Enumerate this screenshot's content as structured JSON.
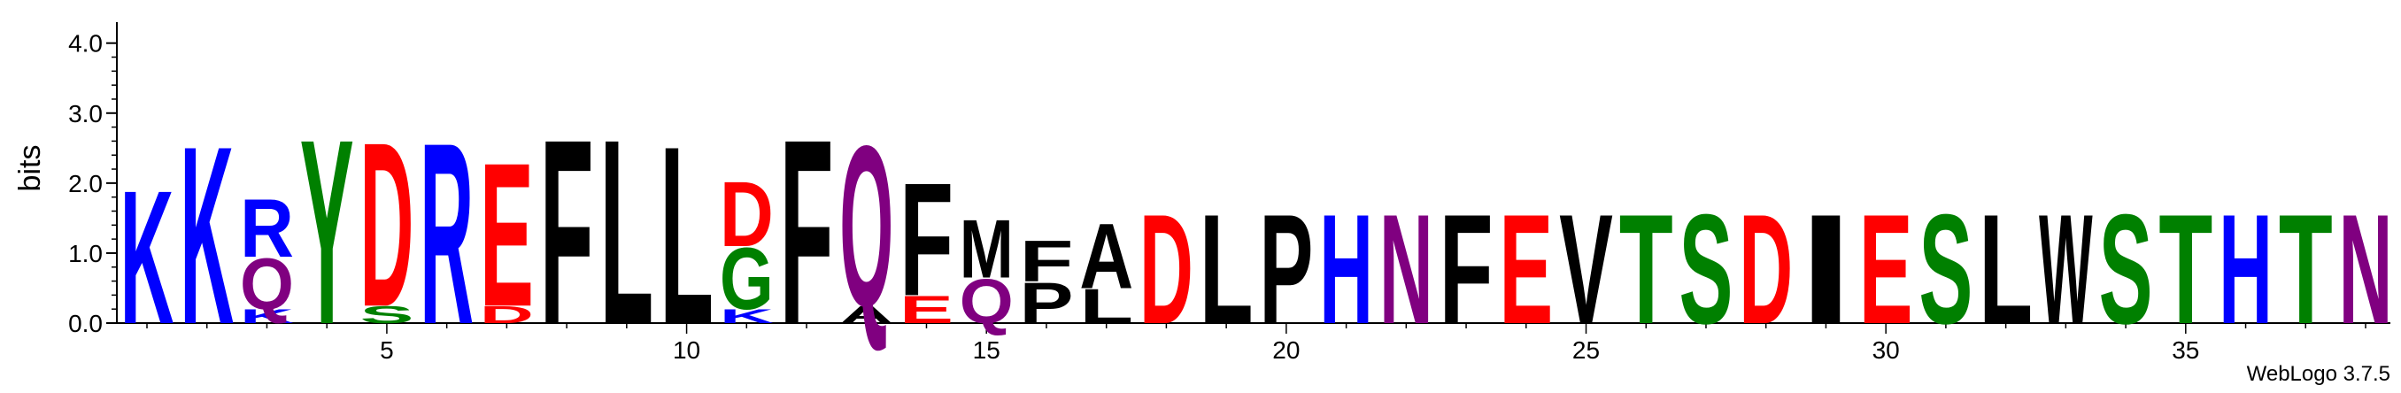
{
  "chart_data": {
    "type": "sequence-logo",
    "ylabel": "bits",
    "ylim": [
      0,
      4.3
    ],
    "y_ticks": [
      "0.0",
      "1.0",
      "2.0",
      "3.0",
      "4.0"
    ],
    "x_ticks": [
      "5",
      "10",
      "15",
      "20",
      "25",
      "30",
      "35"
    ],
    "x_tick_values": [
      5,
      10,
      15,
      20,
      25,
      30,
      35
    ],
    "positions": [
      {
        "pos": 1,
        "stack": [
          {
            "letter": "K",
            "bits": 1.95
          }
        ]
      },
      {
        "pos": 2,
        "stack": [
          {
            "letter": "K",
            "bits": 2.6
          }
        ]
      },
      {
        "pos": 3,
        "stack": [
          {
            "letter": "K",
            "bits": 0.2
          },
          {
            "letter": "Q",
            "bits": 0.75
          },
          {
            "letter": "R",
            "bits": 0.85
          }
        ]
      },
      {
        "pos": 4,
        "stack": [
          {
            "letter": "Y",
            "bits": 2.7
          }
        ]
      },
      {
        "pos": 5,
        "stack": [
          {
            "letter": "S",
            "bits": 0.25
          },
          {
            "letter": "D",
            "bits": 2.4
          }
        ]
      },
      {
        "pos": 6,
        "stack": [
          {
            "letter": "R",
            "bits": 2.65
          }
        ]
      },
      {
        "pos": 7,
        "stack": [
          {
            "letter": "D",
            "bits": 0.25
          },
          {
            "letter": "E",
            "bits": 2.1
          }
        ]
      },
      {
        "pos": 8,
        "stack": [
          {
            "letter": "F",
            "bits": 2.7
          }
        ]
      },
      {
        "pos": 9,
        "stack": [
          {
            "letter": "L",
            "bits": 2.7
          }
        ]
      },
      {
        "pos": 10,
        "stack": [
          {
            "letter": "L",
            "bits": 2.6
          }
        ]
      },
      {
        "pos": 11,
        "stack": [
          {
            "letter": "K",
            "bits": 0.2
          },
          {
            "letter": "G",
            "bits": 0.9
          },
          {
            "letter": "D",
            "bits": 0.95
          }
        ]
      },
      {
        "pos": 12,
        "stack": [
          {
            "letter": "F",
            "bits": 2.7
          }
        ]
      },
      {
        "pos": 13,
        "stack": [
          {
            "letter": "A",
            "bits": 0.25
          },
          {
            "letter": "Q",
            "bits": 2.35
          }
        ]
      },
      {
        "pos": 14,
        "stack": [
          {
            "letter": "E",
            "bits": 0.4
          },
          {
            "letter": "F",
            "bits": 1.65
          }
        ]
      },
      {
        "pos": 15,
        "stack": [
          {
            "letter": "Q",
            "bits": 0.65
          },
          {
            "letter": "M",
            "bits": 0.85
          }
        ]
      },
      {
        "pos": 16,
        "stack": [
          {
            "letter": "P",
            "bits": 0.6
          },
          {
            "letter": "F",
            "bits": 0.6
          }
        ]
      },
      {
        "pos": 17,
        "stack": [
          {
            "letter": "L",
            "bits": 0.5
          },
          {
            "letter": "A",
            "bits": 0.95
          }
        ]
      },
      {
        "pos": 18,
        "stack": [
          {
            "letter": "D",
            "bits": 1.6
          }
        ]
      },
      {
        "pos": 19,
        "stack": [
          {
            "letter": "L",
            "bits": 1.6
          }
        ]
      },
      {
        "pos": 20,
        "stack": [
          {
            "letter": "P",
            "bits": 1.6
          }
        ]
      },
      {
        "pos": 21,
        "stack": [
          {
            "letter": "H",
            "bits": 1.6
          }
        ]
      },
      {
        "pos": 22,
        "stack": [
          {
            "letter": "N",
            "bits": 1.6
          }
        ]
      },
      {
        "pos": 23,
        "stack": [
          {
            "letter": "F",
            "bits": 1.6
          }
        ]
      },
      {
        "pos": 24,
        "stack": [
          {
            "letter": "E",
            "bits": 1.6
          }
        ]
      },
      {
        "pos": 25,
        "stack": [
          {
            "letter": "V",
            "bits": 1.6
          }
        ]
      },
      {
        "pos": 26,
        "stack": [
          {
            "letter": "T",
            "bits": 1.6
          }
        ]
      },
      {
        "pos": 27,
        "stack": [
          {
            "letter": "S",
            "bits": 1.6
          }
        ]
      },
      {
        "pos": 28,
        "stack": [
          {
            "letter": "D",
            "bits": 1.6
          }
        ]
      },
      {
        "pos": 29,
        "stack": [
          {
            "letter": "I",
            "bits": 1.6
          }
        ]
      },
      {
        "pos": 30,
        "stack": [
          {
            "letter": "E",
            "bits": 1.6
          }
        ]
      },
      {
        "pos": 31,
        "stack": [
          {
            "letter": "S",
            "bits": 1.6
          }
        ]
      },
      {
        "pos": 32,
        "stack": [
          {
            "letter": "L",
            "bits": 1.6
          }
        ]
      },
      {
        "pos": 33,
        "stack": [
          {
            "letter": "W",
            "bits": 1.6
          }
        ]
      },
      {
        "pos": 34,
        "stack": [
          {
            "letter": "S",
            "bits": 1.6
          }
        ]
      },
      {
        "pos": 35,
        "stack": [
          {
            "letter": "T",
            "bits": 1.6
          }
        ]
      },
      {
        "pos": 36,
        "stack": [
          {
            "letter": "H",
            "bits": 1.6
          }
        ]
      },
      {
        "pos": 37,
        "stack": [
          {
            "letter": "T",
            "bits": 1.6
          }
        ]
      },
      {
        "pos": 38,
        "stack": [
          {
            "letter": "N",
            "bits": 1.6
          }
        ]
      }
    ],
    "colors": {
      "basic": "#0000ff",
      "acidic": "#ff0000",
      "polar": "#008000",
      "amide": "#800080",
      "hydrophobic": "#000000"
    },
    "letter_colors": {
      "K": "#0000ff",
      "R": "#0000ff",
      "H": "#0000ff",
      "D": "#ff0000",
      "E": "#ff0000",
      "S": "#008000",
      "T": "#008000",
      "Y": "#008000",
      "G": "#008000",
      "C": "#008000",
      "Q": "#800080",
      "N": "#800080",
      "F": "#000000",
      "L": "#000000",
      "A": "#000000",
      "M": "#000000",
      "P": "#000000",
      "I": "#000000",
      "V": "#000000",
      "W": "#000000"
    },
    "footer": "WebLogo 3.7.5"
  }
}
